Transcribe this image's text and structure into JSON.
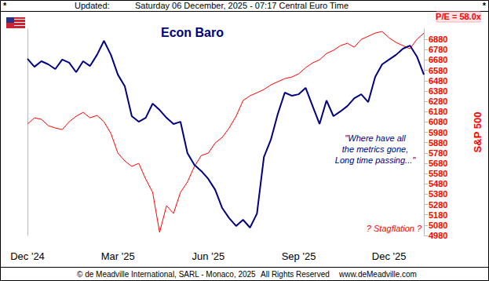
{
  "chart_data": {
    "type": "line",
    "title": "Econ Baro",
    "ylabel": "S&P 500",
    "categories": [
      "Dec '24",
      null,
      null,
      null,
      null,
      null,
      null,
      null,
      null,
      null,
      null,
      null,
      null,
      "Mar '25",
      null,
      null,
      null,
      null,
      null,
      null,
      null,
      null,
      null,
      null,
      null,
      null,
      "Jun '25",
      null,
      null,
      null,
      null,
      null,
      null,
      null,
      null,
      null,
      null,
      null,
      null,
      "Sep '25",
      null,
      null,
      null,
      null,
      null,
      null,
      null,
      null,
      null,
      null,
      null,
      null,
      "Dec '25",
      null,
      null,
      null,
      null,
      null
    ],
    "series": [
      {
        "name": "Econ Baro",
        "color": "#000080",
        "axis": "y2",
        "values": [
          85.6,
          81.7,
          84.4,
          82.9,
          80.6,
          85.2,
          83.7,
          79.1,
          84.4,
          82.1,
          87.5,
          94.3,
          87.5,
          77.9,
          72.2,
          57.8,
          55.1,
          57.0,
          63.9,
          60.8,
          57.0,
          54.0,
          55.1,
          39.9,
          34.2,
          31.2,
          27.4,
          22.1,
          13.3,
          8.4,
          4.6,
          7.6,
          3.8,
          10.6,
          38.0,
          46.4,
          58.9,
          69.2,
          67.7,
          68.4,
          71.5,
          62.7,
          54.0,
          65.4,
          57.8,
          60.1,
          62.7,
          66.5,
          68.4,
          64.6,
          76.8,
          82.9,
          85.2,
          87.5,
          90.5,
          92.0,
          86.7,
          77.9
        ]
      },
      {
        "name": "S&P 500",
        "color": "#ff0000",
        "values": [
          6059,
          6120,
          6105,
          6044,
          6021,
          6006,
          6082,
          6135,
          6173,
          6120,
          6143,
          6082,
          5968,
          5778,
          5702,
          5649,
          5679,
          5527,
          5398,
          5010,
          5269,
          5193,
          5398,
          5497,
          5649,
          5755,
          5778,
          5877,
          5930,
          6021,
          6135,
          6287,
          6333,
          6363,
          6394,
          6439,
          6470,
          6500,
          6515,
          6546,
          6606,
          6652,
          6682,
          6743,
          6774,
          6819,
          6842,
          6804,
          6880,
          6910,
          6941,
          6956,
          6895,
          6850,
          6819,
          6789,
          6880,
          6941
        ]
      }
    ],
    "ylim": [
      4980,
      6980
    ],
    "yticks": [
      4980,
      5080,
      5180,
      5280,
      5380,
      5480,
      5580,
      5680,
      5780,
      5880,
      5980,
      6080,
      6180,
      6280,
      6380,
      6480,
      6580,
      6680,
      6780,
      6880
    ],
    "y2lim": [
      0,
      100
    ],
    "y2ticks": [],
    "grid": false,
    "annotations": [
      "*",
      "Updated:",
      "Saturday 06 December, 2025 - 07:17 Central Euro Time",
      "*",
      "P/E = 58.0x",
      "\"Where have all\nthe metrics gone,\nLong time passing...\"",
      "? Stagflation ?",
      "© de Meadville International, SARL - Monaco, 2025",
      "All Rights Reserved",
      "www.deMeadville.com"
    ]
  }
}
